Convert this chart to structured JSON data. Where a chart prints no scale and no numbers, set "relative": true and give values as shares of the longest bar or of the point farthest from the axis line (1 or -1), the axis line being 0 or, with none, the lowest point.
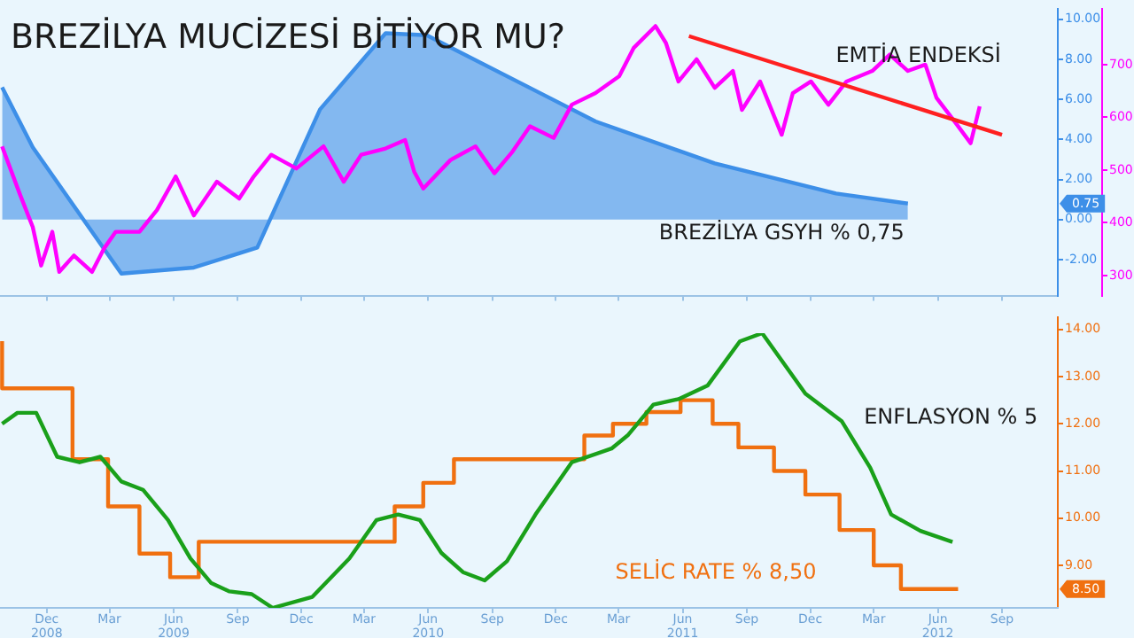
{
  "chart_data": [
    {
      "type": "line",
      "title": "BREZİLYA MUCİZESİ BİTİYOR MU?",
      "xlim": [
        "2008-09-25",
        "2012-11-20"
      ],
      "xticks": [
        {
          "value": "2008-12-01",
          "label": null
        },
        {
          "value": "2009-03-01",
          "label": null
        },
        {
          "value": "2009-06-01",
          "label": null
        },
        {
          "value": "2009-09-01",
          "label": null
        },
        {
          "value": "2009-12-01",
          "label": null
        },
        {
          "value": "2010-03-01",
          "label": null
        },
        {
          "value": "2010-06-01",
          "label": null
        },
        {
          "value": "2010-09-01",
          "label": null
        },
        {
          "value": "2010-12-01",
          "label": null
        },
        {
          "value": "2011-03-01",
          "label": null
        },
        {
          "value": "2011-06-01",
          "label": null
        },
        {
          "value": "2011-09-01",
          "label": null
        },
        {
          "value": "2011-12-01",
          "label": null
        },
        {
          "value": "2012-03-01",
          "label": null
        },
        {
          "value": "2012-06-01",
          "label": null
        },
        {
          "value": "2012-09-01",
          "label": null
        }
      ],
      "ylim": [
        -3.8,
        10.5
      ],
      "yticks": [
        {
          "value": -2,
          "label": "-2.00"
        },
        {
          "value": 0,
          "label": "0.00"
        },
        {
          "value": 2,
          "label": "2.00"
        },
        {
          "value": 4,
          "label": "4.00"
        },
        {
          "value": 6,
          "label": "6.00"
        },
        {
          "value": 8,
          "label": "8.00"
        },
        {
          "value": 10,
          "label": "10.00"
        }
      ],
      "y2lim": [
        262,
        805
      ],
      "y2ticks": [
        300,
        400,
        500,
        600,
        700
      ],
      "tick_labels": "y",
      "grid": false,
      "legend": false,
      "marker": "none",
      "annotations": [
        "0.75"
      ],
      "series": [
        {
          "name": "BREZİLYA GSYH % 0,75",
          "type": "area",
          "color": "#3d8fe8",
          "x": [
            "2008-09-28",
            "2008-11-11",
            "2009-03-18",
            "2009-06-30",
            "2009-09-29",
            "2009-12-28",
            "2010-04-01",
            "2010-05-30",
            "2010-11-15",
            "2011-01-27",
            "2011-07-17",
            "2012-01-07",
            "2012-04-19"
          ],
          "values": [
            6.6,
            3.6,
            -2.7,
            -2.4,
            -1.4,
            5.5,
            9.3,
            9.2,
            6.2,
            4.9,
            2.8,
            1.3,
            0.8
          ]
        },
        {
          "name": "EMTİA ENDEKSİ",
          "axis": "y2",
          "color": "#ff00ff",
          "x": [
            "2008-09-28",
            "2008-10-23",
            "2008-11-11",
            "2008-11-23",
            "2008-12-09",
            "2008-12-19",
            "2009-01-09",
            "2009-02-04",
            "2009-02-21",
            "2009-03-10",
            "2009-04-13",
            "2009-05-08",
            "2009-06-04",
            "2009-06-30",
            "2009-08-02",
            "2009-09-03",
            "2009-09-24",
            "2009-10-19",
            "2009-11-24",
            "2010-01-02",
            "2010-01-31",
            "2010-02-25",
            "2010-04-01",
            "2010-04-29",
            "2010-05-12",
            "2010-05-25",
            "2010-07-03",
            "2010-08-08",
            "2010-09-04",
            "2010-09-30",
            "2010-10-25",
            "2010-11-28",
            "2010-12-24",
            "2011-01-27",
            "2011-03-02",
            "2011-03-23",
            "2011-04-23",
            "2011-05-08",
            "2011-05-26",
            "2011-06-21",
            "2011-07-17",
            "2011-08-12",
            "2011-08-25",
            "2011-09-20",
            "2011-10-21",
            "2011-11-06",
            "2011-12-02",
            "2011-12-27",
            "2012-01-22",
            "2012-02-28",
            "2012-03-24",
            "2012-04-19",
            "2012-05-14",
            "2012-05-30",
            "2012-06-25",
            "2012-07-18",
            "2012-07-31"
          ],
          "values": [
            545,
            456,
            392,
            319,
            383,
            307,
            338,
            307,
            351,
            383,
            383,
            424,
            488,
            414,
            478,
            446,
            488,
            529,
            503,
            545,
            478,
            529,
            541,
            557,
            497,
            465,
            519,
            545,
            494,
            535,
            583,
            561,
            624,
            646,
            678,
            732,
            773,
            741,
            668,
            710,
            656,
            688,
            614,
            668,
            567,
            646,
            668,
            624,
            668,
            688,
            719,
            688,
            700,
            637,
            592,
            551,
            621
          ]
        },
        {
          "axis": "y2",
          "color": "#ff2020",
          "x": [
            "2011-06-10",
            "2012-09-01"
          ],
          "values": [
            754,
            567
          ]
        }
      ]
    },
    {
      "type": "step",
      "xlim": [
        "2008-09-25",
        "2012-11-20"
      ],
      "xticks": [
        {
          "value": "2008-12-01",
          "label": "Dec\n2008"
        },
        {
          "value": "2009-03-01",
          "label": "Mar"
        },
        {
          "value": "2009-06-01",
          "label": "Jun\n2009"
        },
        {
          "value": "2009-09-01",
          "label": "Sep"
        },
        {
          "value": "2009-12-01",
          "label": "Dec"
        },
        {
          "value": "2010-03-01",
          "label": "Mar"
        },
        {
          "value": "2010-06-01",
          "label": "Jun\n2010"
        },
        {
          "value": "2010-09-01",
          "label": "Sep"
        },
        {
          "value": "2010-12-01",
          "label": "Dec"
        },
        {
          "value": "2011-03-01",
          "label": "Mar"
        },
        {
          "value": "2011-06-01",
          "label": "Jun\n2011"
        },
        {
          "value": "2011-09-01",
          "label": "Sep"
        },
        {
          "value": "2011-12-01",
          "label": "Dec"
        },
        {
          "value": "2012-03-01",
          "label": "Mar"
        },
        {
          "value": "2012-06-01",
          "label": "Jun\n2012"
        },
        {
          "value": "2012-09-01",
          "label": "Sep"
        }
      ],
      "ylim": [
        8.1,
        14.25
      ],
      "yticks": [
        {
          "value": 9,
          "label": "9.00"
        },
        {
          "value": 10,
          "label": "10.00"
        },
        {
          "value": 11,
          "label": "11.00"
        },
        {
          "value": 12,
          "label": "12.00"
        },
        {
          "value": 13,
          "label": "13.00"
        },
        {
          "value": 14,
          "label": "14.00"
        }
      ],
      "grid": false,
      "legend": false,
      "marker": "none",
      "annotations": [
        "8.50"
      ],
      "series": [
        {
          "name": "SELİC RATE % 8,50",
          "color": "#f07010",
          "x": [
            "2008-09-28",
            "2009-01-07",
            "2009-02-27",
            "2009-04-13",
            "2009-05-27",
            "2009-07-07",
            "2010-04-14",
            "2010-05-25",
            "2010-07-08",
            "2011-01-11",
            "2011-02-21",
            "2011-04-10",
            "2011-05-29",
            "2011-07-14",
            "2011-08-20",
            "2011-10-10",
            "2011-11-24",
            "2012-01-12",
            "2012-03-01",
            "2012-04-09",
            "2012-05-25",
            "2012-06-30"
          ],
          "values": [
            13.75,
            12.75,
            11.25,
            10.25,
            9.25,
            8.75,
            9.5,
            10.25,
            10.75,
            11.25,
            11.75,
            12,
            12.25,
            12.5,
            12,
            11.5,
            11,
            10.5,
            9.75,
            9,
            8.5,
            8.5
          ]
        }
      ]
    },
    {
      "type": "line",
      "relative": true,
      "xlim": [
        "2008-09-25",
        "2012-11-20"
      ],
      "tick_labels": false,
      "legend": false,
      "marker": "none",
      "series": [
        {
          "name": "ENFLASYON % 5",
          "color": "#1aa01a",
          "x": [
            "2008-09-28",
            "2008-10-20",
            "2008-11-16",
            "2008-12-16",
            "2009-01-17",
            "2009-02-16",
            "2009-03-18",
            "2009-04-18",
            "2009-05-24",
            "2009-06-25",
            "2009-07-25",
            "2009-08-20",
            "2009-09-21",
            "2009-10-21",
            "2009-12-17",
            "2010-02-08",
            "2010-03-19",
            "2010-04-19",
            "2010-05-20",
            "2010-06-20",
            "2010-07-21",
            "2010-08-21",
            "2010-09-22",
            "2010-11-02",
            "2010-12-24",
            "2011-02-19",
            "2011-03-15",
            "2011-04-20",
            "2011-05-26",
            "2011-07-07",
            "2011-08-22",
            "2011-09-23",
            "2011-11-24",
            "2012-01-15",
            "2012-02-25",
            "2012-03-26",
            "2012-05-07",
            "2012-06-22"
          ],
          "values": [
            0.67,
            0.71,
            0.71,
            0.55,
            0.53,
            0.55,
            0.46,
            0.43,
            0.32,
            0.18,
            0.09,
            0.06,
            0.05,
            0,
            0.04,
            0.18,
            0.32,
            0.34,
            0.32,
            0.2,
            0.13,
            0.1,
            0.17,
            0.34,
            0.53,
            0.58,
            0.63,
            0.74,
            0.76,
            0.81,
            0.97,
            1,
            0.78,
            0.68,
            0.51,
            0.34,
            0.28,
            0.24
          ]
        }
      ]
    }
  ]
}
